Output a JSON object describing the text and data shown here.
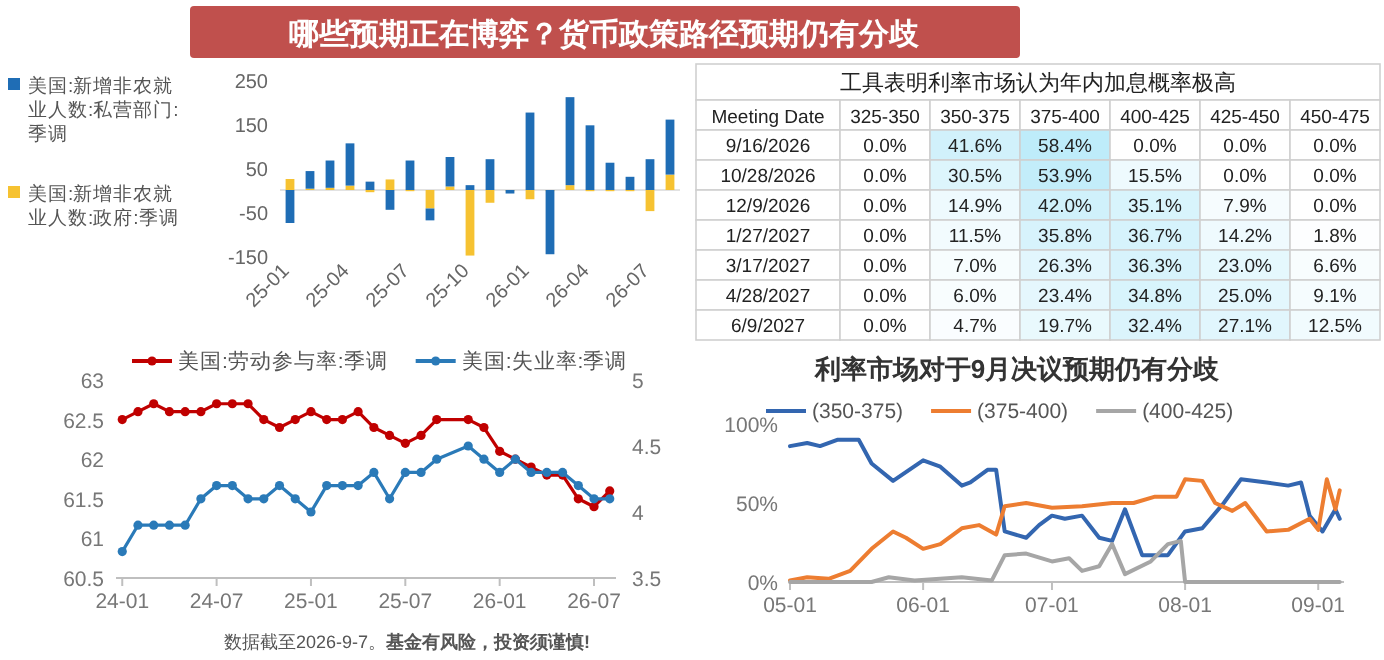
{
  "chart_data": [
    {
      "type": "bar",
      "title": "哪些预期正在博弈？货币政策路径预期仍有分歧",
      "categories": [
        "25-01",
        null,
        null,
        "25-04",
        null,
        null,
        "25-07",
        null,
        null,
        "25-10",
        null,
        null,
        "26-01",
        null,
        null,
        "26-04",
        null,
        null,
        "26-07",
        null
      ],
      "series": [
        {
          "name": "美国:新增非农就业人数:政府:季调",
          "color": "#f6c231",
          "values": [
            25,
            3,
            5,
            10,
            -5,
            24,
            0,
            -42,
            8,
            -149,
            -29,
            0,
            -21,
            0,
            11,
            0,
            0,
            0,
            -48,
            35
          ]
        },
        {
          "name": "美国:新增非农就业人数:私营部门:季调",
          "color": "#1f6db5",
          "values": [
            -75,
            40,
            62,
            96,
            19,
            -45,
            67,
            -27,
            67,
            11,
            70,
            -8,
            176,
            -146,
            200,
            147,
            62,
            30,
            70,
            125
          ]
        }
      ],
      "stacked": true,
      "ylim": [
        -150,
        250
      ],
      "yticks": [
        -150,
        -50,
        50,
        150,
        250
      ],
      "legend": "left"
    },
    {
      "type": "heatmap",
      "title": "工具表明利率市场认为年内加息概率极高",
      "ylabel": "Meeting Date",
      "categories": [
        "325-350",
        "350-375",
        "375-400",
        "400-425",
        "425-450",
        "450-475"
      ],
      "y_categories": [
        "9/16/2026",
        "10/28/2026",
        "12/9/2026",
        "1/27/2027",
        "3/17/2027",
        "4/28/2027",
        "6/9/2027"
      ],
      "cells": [
        [
          0.0,
          41.6,
          58.4,
          0.0,
          0.0,
          0.0
        ],
        [
          0.0,
          30.5,
          53.9,
          15.5,
          0.0,
          0.0
        ],
        [
          0.0,
          14.9,
          42.0,
          35.1,
          7.9,
          0.0
        ],
        [
          0.0,
          11.5,
          35.8,
          36.7,
          14.2,
          1.8
        ],
        [
          0.0,
          7.0,
          26.3,
          36.3,
          23.0,
          6.6
        ],
        [
          0.0,
          6.0,
          23.4,
          34.8,
          25.0,
          9.1
        ],
        [
          0.0,
          4.7,
          19.7,
          32.4,
          27.1,
          12.5
        ]
      ],
      "cell_labels": [
        [
          "0.0%",
          "41.6%",
          "58.4%",
          "0.0%",
          "0.0%",
          "0.0%"
        ],
        [
          "0.0%",
          "30.5%",
          "53.9%",
          "15.5%",
          "0.0%",
          "0.0%"
        ],
        [
          "0.0%",
          "14.9%",
          "42.0%",
          "35.1%",
          "7.9%",
          "0.0%"
        ],
        [
          "0.0%",
          "11.5%",
          "35.8%",
          "36.7%",
          "14.2%",
          "1.8%"
        ],
        [
          "0.0%",
          "7.0%",
          "26.3%",
          "36.3%",
          "23.0%",
          "6.6%"
        ],
        [
          "0.0%",
          "6.0%",
          "23.4%",
          "34.8%",
          "25.0%",
          "9.1%"
        ],
        [
          "0.0%",
          "4.7%",
          "19.7%",
          "32.4%",
          "27.1%",
          "12.5%"
        ]
      ]
    },
    {
      "type": "line",
      "categories": [
        "24-01",
        null,
        null,
        null,
        null,
        null,
        "24-07",
        null,
        null,
        null,
        null,
        null,
        "25-01",
        null,
        null,
        null,
        null,
        null,
        "25-07",
        null,
        null,
        null,
        null,
        null,
        "26-01",
        null,
        null,
        null,
        null,
        null,
        "26-07",
        null
      ],
      "series": [
        {
          "name": "美国:劳动参与率:季调",
          "color": "#c00000",
          "values": [
            62.5,
            62.6,
            62.7,
            62.6,
            62.6,
            62.6,
            62.7,
            62.7,
            62.7,
            62.5,
            62.4,
            62.5,
            62.6,
            62.5,
            62.5,
            62.6,
            62.4,
            62.3,
            62.2,
            62.3,
            62.5,
            null,
            62.5,
            62.4,
            62.1,
            62.0,
            61.9,
            61.8,
            61.8,
            61.5,
            61.4,
            61.6
          ]
        },
        {
          "name": "美国:失业率:季调",
          "color": "#2a7ab8",
          "axis": "y2",
          "values": [
            3.7,
            3.9,
            3.9,
            3.9,
            3.9,
            4.1,
            4.2,
            4.2,
            4.1,
            4.1,
            4.2,
            4.1,
            4.0,
            4.2,
            4.2,
            4.2,
            4.3,
            4.1,
            4.3,
            4.3,
            4.4,
            null,
            4.5,
            4.4,
            4.3,
            4.4,
            4.3,
            4.3,
            4.3,
            4.2,
            4.1,
            4.1
          ]
        }
      ],
      "ylim": [
        60.5,
        63.0
      ],
      "yticks": [
        60.5,
        61.0,
        61.5,
        62.0,
        62.5,
        63.0
      ],
      "y2lim": [
        3.5,
        5.0
      ],
      "y2ticks": [
        3.5,
        4.0,
        4.5,
        5.0
      ],
      "marker": "circle",
      "legend": "top",
      "annotations": [
        "数据截至2026-9-7。**基金有风险，投资须谨慎!**"
      ]
    },
    {
      "type": "line",
      "title": "利率市场对于9月决议预期仍有分歧",
      "xlim": [
        "--05-01",
        "--09-07"
      ],
      "xticks": [
        {
          "value": "--05-01",
          "label": "05-01"
        },
        {
          "value": "--06-01",
          "label": "06-01"
        },
        {
          "value": "--07-01",
          "label": "07-01"
        },
        {
          "value": "--08-01",
          "label": "08-01"
        },
        {
          "value": "--09-01",
          "label": "09-01"
        }
      ],
      "ylim": [
        0,
        100
      ],
      "yticks": [
        {
          "value": 0,
          "label": "0%"
        },
        {
          "value": 50,
          "label": "50%"
        },
        {
          "value": 100,
          "label": "100%"
        }
      ],
      "legend": "top",
      "series": [
        {
          "name": "(350-375)",
          "color": "#3366b0",
          "x": [
            "--05-01",
            "--05-05",
            "--05-08",
            "--05-12",
            "--05-17",
            "--05-20",
            "--05-25",
            "--06-01",
            "--06-05",
            "--06-10",
            "--06-12",
            "--06-16",
            "--06-18",
            "--06-20",
            "--06-25",
            "--06-28",
            "--07-01",
            "--07-04",
            "--07-08",
            "--07-12",
            "--07-15",
            "--07-18",
            "--07-22",
            "--07-28",
            "--08-01",
            "--08-05",
            "--08-10",
            "--08-14",
            "--08-20",
            "--08-25",
            "--08-28",
            "--08-30",
            "--09-02",
            "--09-05",
            "--09-06"
          ],
          "values": [
            86,
            88,
            86,
            90,
            90,
            75,
            64,
            77,
            73,
            61,
            63,
            71,
            71,
            32,
            28,
            36,
            42,
            40,
            42,
            28,
            26,
            46,
            17,
            17,
            32,
            34,
            50,
            65,
            63,
            61,
            63,
            42,
            32,
            46,
            40
          ]
        },
        {
          "name": "(375-400)",
          "color": "#ed7d31",
          "x": [
            "--05-01",
            "--05-05",
            "--05-10",
            "--05-15",
            "--05-20",
            "--05-25",
            "--05-28",
            "--06-01",
            "--06-05",
            "--06-10",
            "--06-14",
            "--06-18",
            "--06-20",
            "--06-25",
            "--07-01",
            "--07-08",
            "--07-15",
            "--07-20",
            "--07-25",
            "--07-30",
            "--08-01",
            "--08-05",
            "--08-08",
            "--08-12",
            "--08-15",
            "--08-20",
            "--08-25",
            "--08-30",
            "--09-01",
            "--09-03",
            "--09-05",
            "--09-06"
          ],
          "values": [
            1,
            3,
            2,
            7,
            21,
            32,
            28,
            21,
            24,
            34,
            36,
            30,
            48,
            50,
            47,
            48,
            50,
            50,
            54,
            54,
            65,
            64,
            50,
            45,
            50,
            32,
            33,
            40,
            33,
            65,
            46,
            58
          ]
        },
        {
          "name": "(400-425)",
          "color": "#a6a6a6",
          "x": [
            "--05-01",
            "--05-20",
            "--05-24",
            "--05-30",
            "--06-10",
            "--06-17",
            "--06-20",
            "--06-25",
            "--07-01",
            "--07-05",
            "--07-08",
            "--07-12",
            "--07-15",
            "--07-18",
            "--07-24",
            "--07-28",
            "--07-31",
            "--08-01",
            "--09-06"
          ],
          "values": [
            0,
            0,
            3,
            1,
            3,
            1,
            17,
            18,
            13,
            15,
            7,
            10,
            24,
            5,
            13,
            24,
            26,
            0,
            0
          ]
        }
      ]
    }
  ]
}
